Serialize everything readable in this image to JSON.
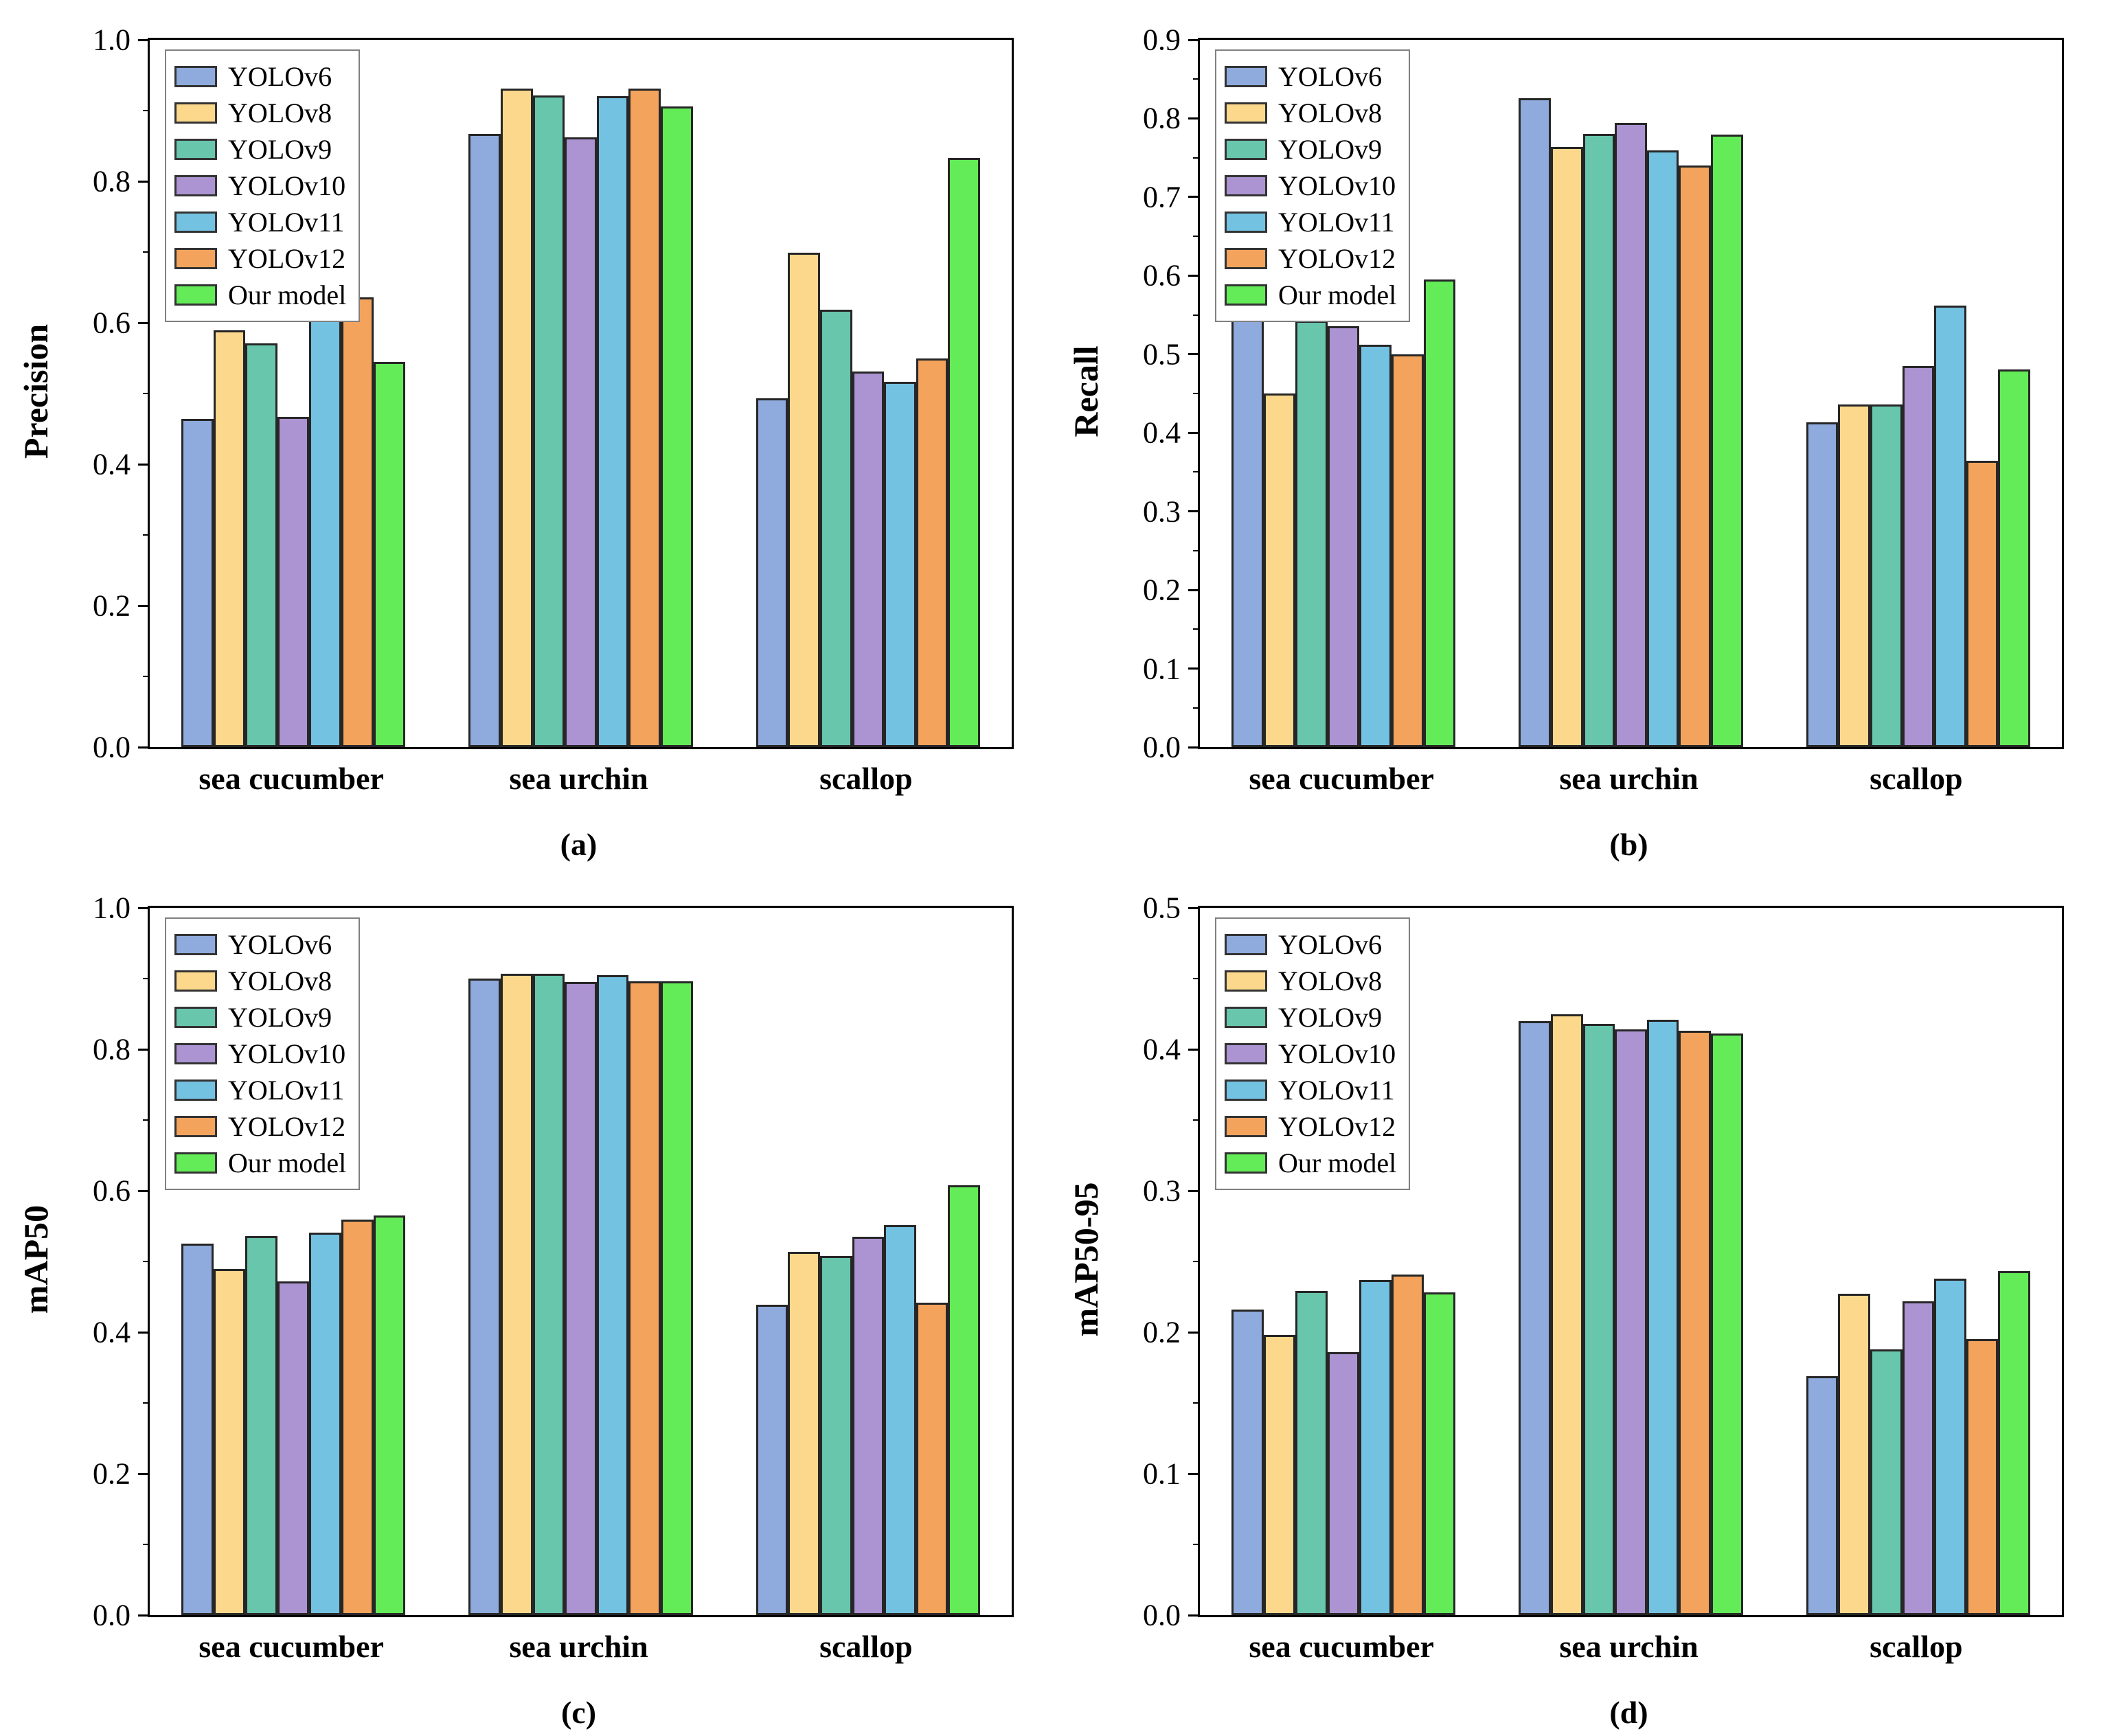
{
  "palette": {
    "YOLOv6": "#8FAADC",
    "YOLOv8": "#FBD88B",
    "YOLOv9": "#68C6AD",
    "YOLOv10": "#AC93D2",
    "YOLOv11": "#74C2E2",
    "YOLOv12": "#F3A35C",
    "Our model": "#63EB58"
  },
  "bar_edge_color": "#262626",
  "chart_data": [
    {
      "type": "bar",
      "caption": "(a)",
      "ylabel": "Precision",
      "ylim": [
        0.0,
        1.0
      ],
      "ytick_step": 0.2,
      "minor_per_major": 1,
      "yticks": [
        "0.0",
        "0.2",
        "0.4",
        "0.6",
        "0.8",
        "1.0"
      ],
      "grid": false,
      "legend_position": "top-left",
      "categories": [
        "sea cucumber",
        "sea urchin",
        "scallop"
      ],
      "series": [
        {
          "name": "YOLOv6",
          "values": [
            0.464,
            0.867,
            0.493
          ]
        },
        {
          "name": "YOLOv8",
          "values": [
            0.589,
            0.931,
            0.699
          ]
        },
        {
          "name": "YOLOv9",
          "values": [
            0.571,
            0.921,
            0.618
          ]
        },
        {
          "name": "YOLOv10",
          "values": [
            0.467,
            0.862,
            0.531
          ]
        },
        {
          "name": "YOLOv11",
          "values": [
            0.644,
            0.92,
            0.517
          ]
        },
        {
          "name": "YOLOv12",
          "values": [
            0.636,
            0.931,
            0.55
          ]
        },
        {
          "name": "Our model",
          "values": [
            0.545,
            0.906,
            0.833
          ]
        }
      ]
    },
    {
      "type": "bar",
      "caption": "(b)",
      "ylabel": "Recall",
      "ylim": [
        0.0,
        0.9
      ],
      "ytick_step": 0.1,
      "minor_per_major": 1,
      "yticks": [
        "0.0",
        "0.1",
        "0.2",
        "0.3",
        "0.4",
        "0.5",
        "0.6",
        "0.7",
        "0.8",
        "0.9"
      ],
      "grid": false,
      "legend_position": "top-left",
      "categories": [
        "sea cucumber",
        "sea urchin",
        "scallop"
      ],
      "series": [
        {
          "name": "YOLOv6",
          "values": [
            0.585,
            0.826,
            0.413
          ]
        },
        {
          "name": "YOLOv8",
          "values": [
            0.45,
            0.764,
            0.436
          ]
        },
        {
          "name": "YOLOv9",
          "values": [
            0.543,
            0.78,
            0.436
          ]
        },
        {
          "name": "YOLOv10",
          "values": [
            0.536,
            0.794,
            0.485
          ]
        },
        {
          "name": "YOLOv11",
          "values": [
            0.512,
            0.759,
            0.562
          ]
        },
        {
          "name": "YOLOv12",
          "values": [
            0.5,
            0.74,
            0.364
          ]
        },
        {
          "name": "Our model",
          "values": [
            0.595,
            0.779,
            0.481
          ]
        }
      ]
    },
    {
      "type": "bar",
      "caption": "(c)",
      "ylabel": "mAP50",
      "ylim": [
        0.0,
        1.0
      ],
      "ytick_step": 0.2,
      "minor_per_major": 1,
      "yticks": [
        "0.0",
        "0.2",
        "0.4",
        "0.6",
        "0.8",
        "1.0"
      ],
      "grid": false,
      "legend_position": "top-left",
      "categories": [
        "sea cucumber",
        "sea urchin",
        "scallop"
      ],
      "series": [
        {
          "name": "YOLOv6",
          "values": [
            0.525,
            0.9,
            0.439
          ]
        },
        {
          "name": "YOLOv8",
          "values": [
            0.489,
            0.907,
            0.514
          ]
        },
        {
          "name": "YOLOv9",
          "values": [
            0.536,
            0.907,
            0.508
          ]
        },
        {
          "name": "YOLOv10",
          "values": [
            0.472,
            0.895,
            0.535
          ]
        },
        {
          "name": "YOLOv11",
          "values": [
            0.541,
            0.905,
            0.551
          ]
        },
        {
          "name": "YOLOv12",
          "values": [
            0.559,
            0.896,
            0.442
          ]
        },
        {
          "name": "Our model",
          "values": [
            0.565,
            0.896,
            0.608
          ]
        }
      ]
    },
    {
      "type": "bar",
      "caption": "(d)",
      "ylabel": "mAP50-95",
      "ylim": [
        0.0,
        0.5
      ],
      "ytick_step": 0.1,
      "minor_per_major": 1,
      "yticks": [
        "0.0",
        "0.1",
        "0.2",
        "0.3",
        "0.4",
        "0.5"
      ],
      "grid": false,
      "legend_position": "top-left",
      "categories": [
        "sea cucumber",
        "sea urchin",
        "scallop"
      ],
      "series": [
        {
          "name": "YOLOv6",
          "values": [
            0.216,
            0.42,
            0.169
          ]
        },
        {
          "name": "YOLOv8",
          "values": [
            0.198,
            0.425,
            0.227
          ]
        },
        {
          "name": "YOLOv9",
          "values": [
            0.229,
            0.418,
            0.188
          ]
        },
        {
          "name": "YOLOv10",
          "values": [
            0.186,
            0.414,
            0.222
          ]
        },
        {
          "name": "YOLOv11",
          "values": [
            0.237,
            0.421,
            0.238
          ]
        },
        {
          "name": "YOLOv12",
          "values": [
            0.241,
            0.413,
            0.195
          ]
        },
        {
          "name": "Our model",
          "values": [
            0.228,
            0.411,
            0.243
          ]
        }
      ]
    }
  ]
}
